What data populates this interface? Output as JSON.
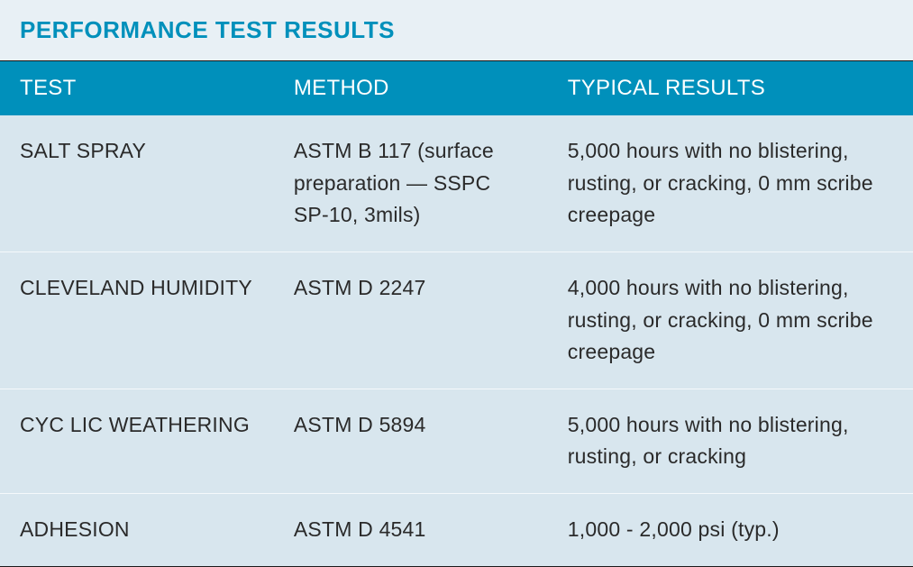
{
  "title": "PERFORMANCE TEST RESULTS",
  "table": {
    "type": "table",
    "columns": [
      "TEST",
      "METHOD",
      "TYPICAL RESULTS"
    ],
    "column_widths": [
      "30%",
      "30%",
      "40%"
    ],
    "header_bg_color": "#0090bb",
    "header_text_color": "#ffffff",
    "row_bg_color": "#d8e6ee",
    "row_separator_color": "#f5f9fb",
    "border_color": "#1a1a1a",
    "text_color": "#2a2a2a",
    "header_fontsize": 24,
    "cell_fontsize": 23,
    "rows": [
      {
        "test": "SALT SPRAY",
        "method": "ASTM B 117 (surface preparation — SSPC SP-10, 3mils)",
        "results": "5,000 hours with no blistering, rusting, or cracking, 0 mm scribe creepage"
      },
      {
        "test": "CLEVELAND HUMIDITY",
        "method": "ASTM D 2247",
        "results": "4,000 hours with no blistering, rusting, or cracking, 0 mm scribe creepage"
      },
      {
        "test": "CYC LIC WEATHERING",
        "method": "ASTM D 5894",
        "results": "5,000 hours with no blistering, rusting, or cracking"
      },
      {
        "test": "ADHESION",
        "method": "ASTM D 4541",
        "results": "1,000 - 2,000 psi (typ.)"
      }
    ]
  },
  "colors": {
    "title_color": "#0090bb",
    "container_bg": "#e8f0f5"
  },
  "typography": {
    "title_fontsize": 26,
    "title_fontweight": "bold",
    "font_family": "Arial, Helvetica, sans-serif"
  }
}
